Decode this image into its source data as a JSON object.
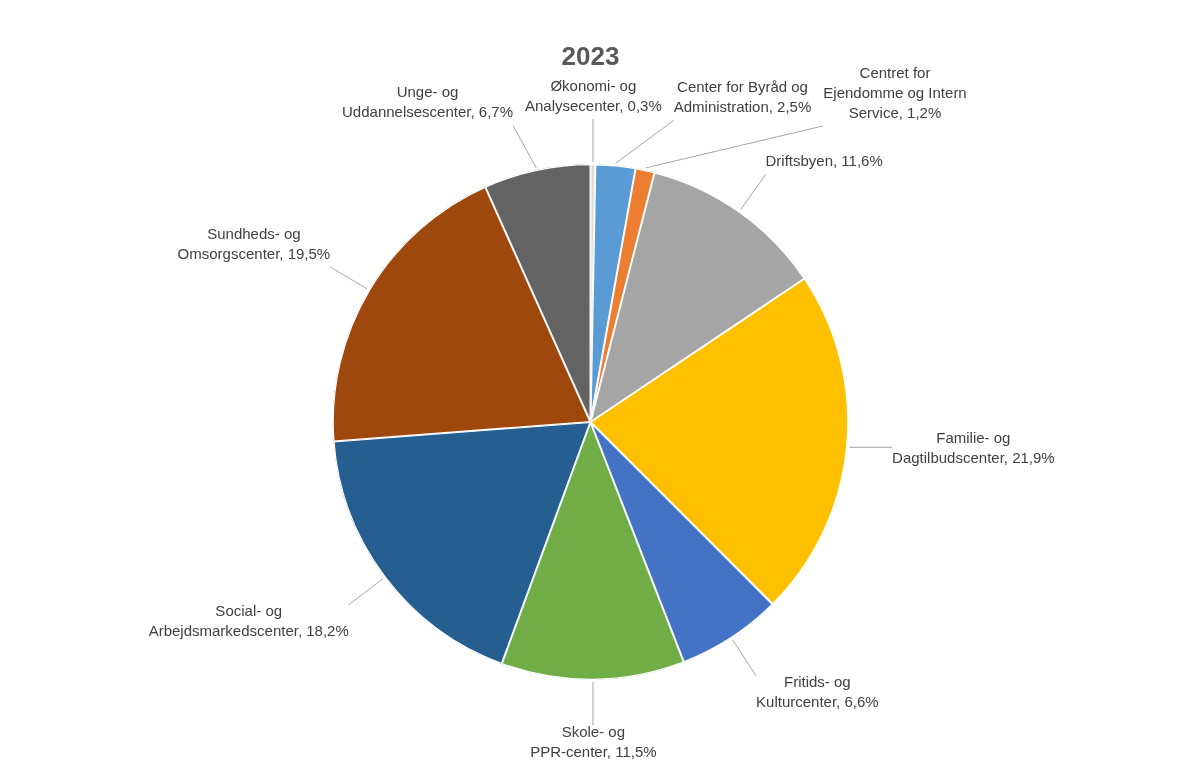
{
  "chart_data": {
    "type": "pie",
    "title": "2023",
    "categories": [
      "Økonomi- og Analysecenter",
      "Center for Byråd og Administration",
      "Centret for Ejendomme og Intern Service",
      "Driftsbyen",
      "Familie- og Dagtilbudscenter",
      "Fritids- og Kulturcenter",
      "Skole- og PPR-center",
      "Social- og Arbejdsmarkedscenter",
      "Sundheds- og Omsorgscenter",
      "Unge- og Uddannelsescenter"
    ],
    "values": [
      0.3,
      2.5,
      1.2,
      11.6,
      21.9,
      6.6,
      11.5,
      18.2,
      19.5,
      6.7
    ],
    "value_labels": [
      "0,3%",
      "2,5%",
      "1,2%",
      "11,6%",
      "21,9%",
      "6,6%",
      "11,5%",
      "18,2%",
      "19,5%",
      "6,7%"
    ],
    "colors": [
      "#dcdcdc",
      "#5b9bd5",
      "#ed7d31",
      "#a5a5a5",
      "#ffc000",
      "#4472c4",
      "#70ad47",
      "#255e91",
      "#9e480e",
      "#636363"
    ],
    "legend": false
  }
}
